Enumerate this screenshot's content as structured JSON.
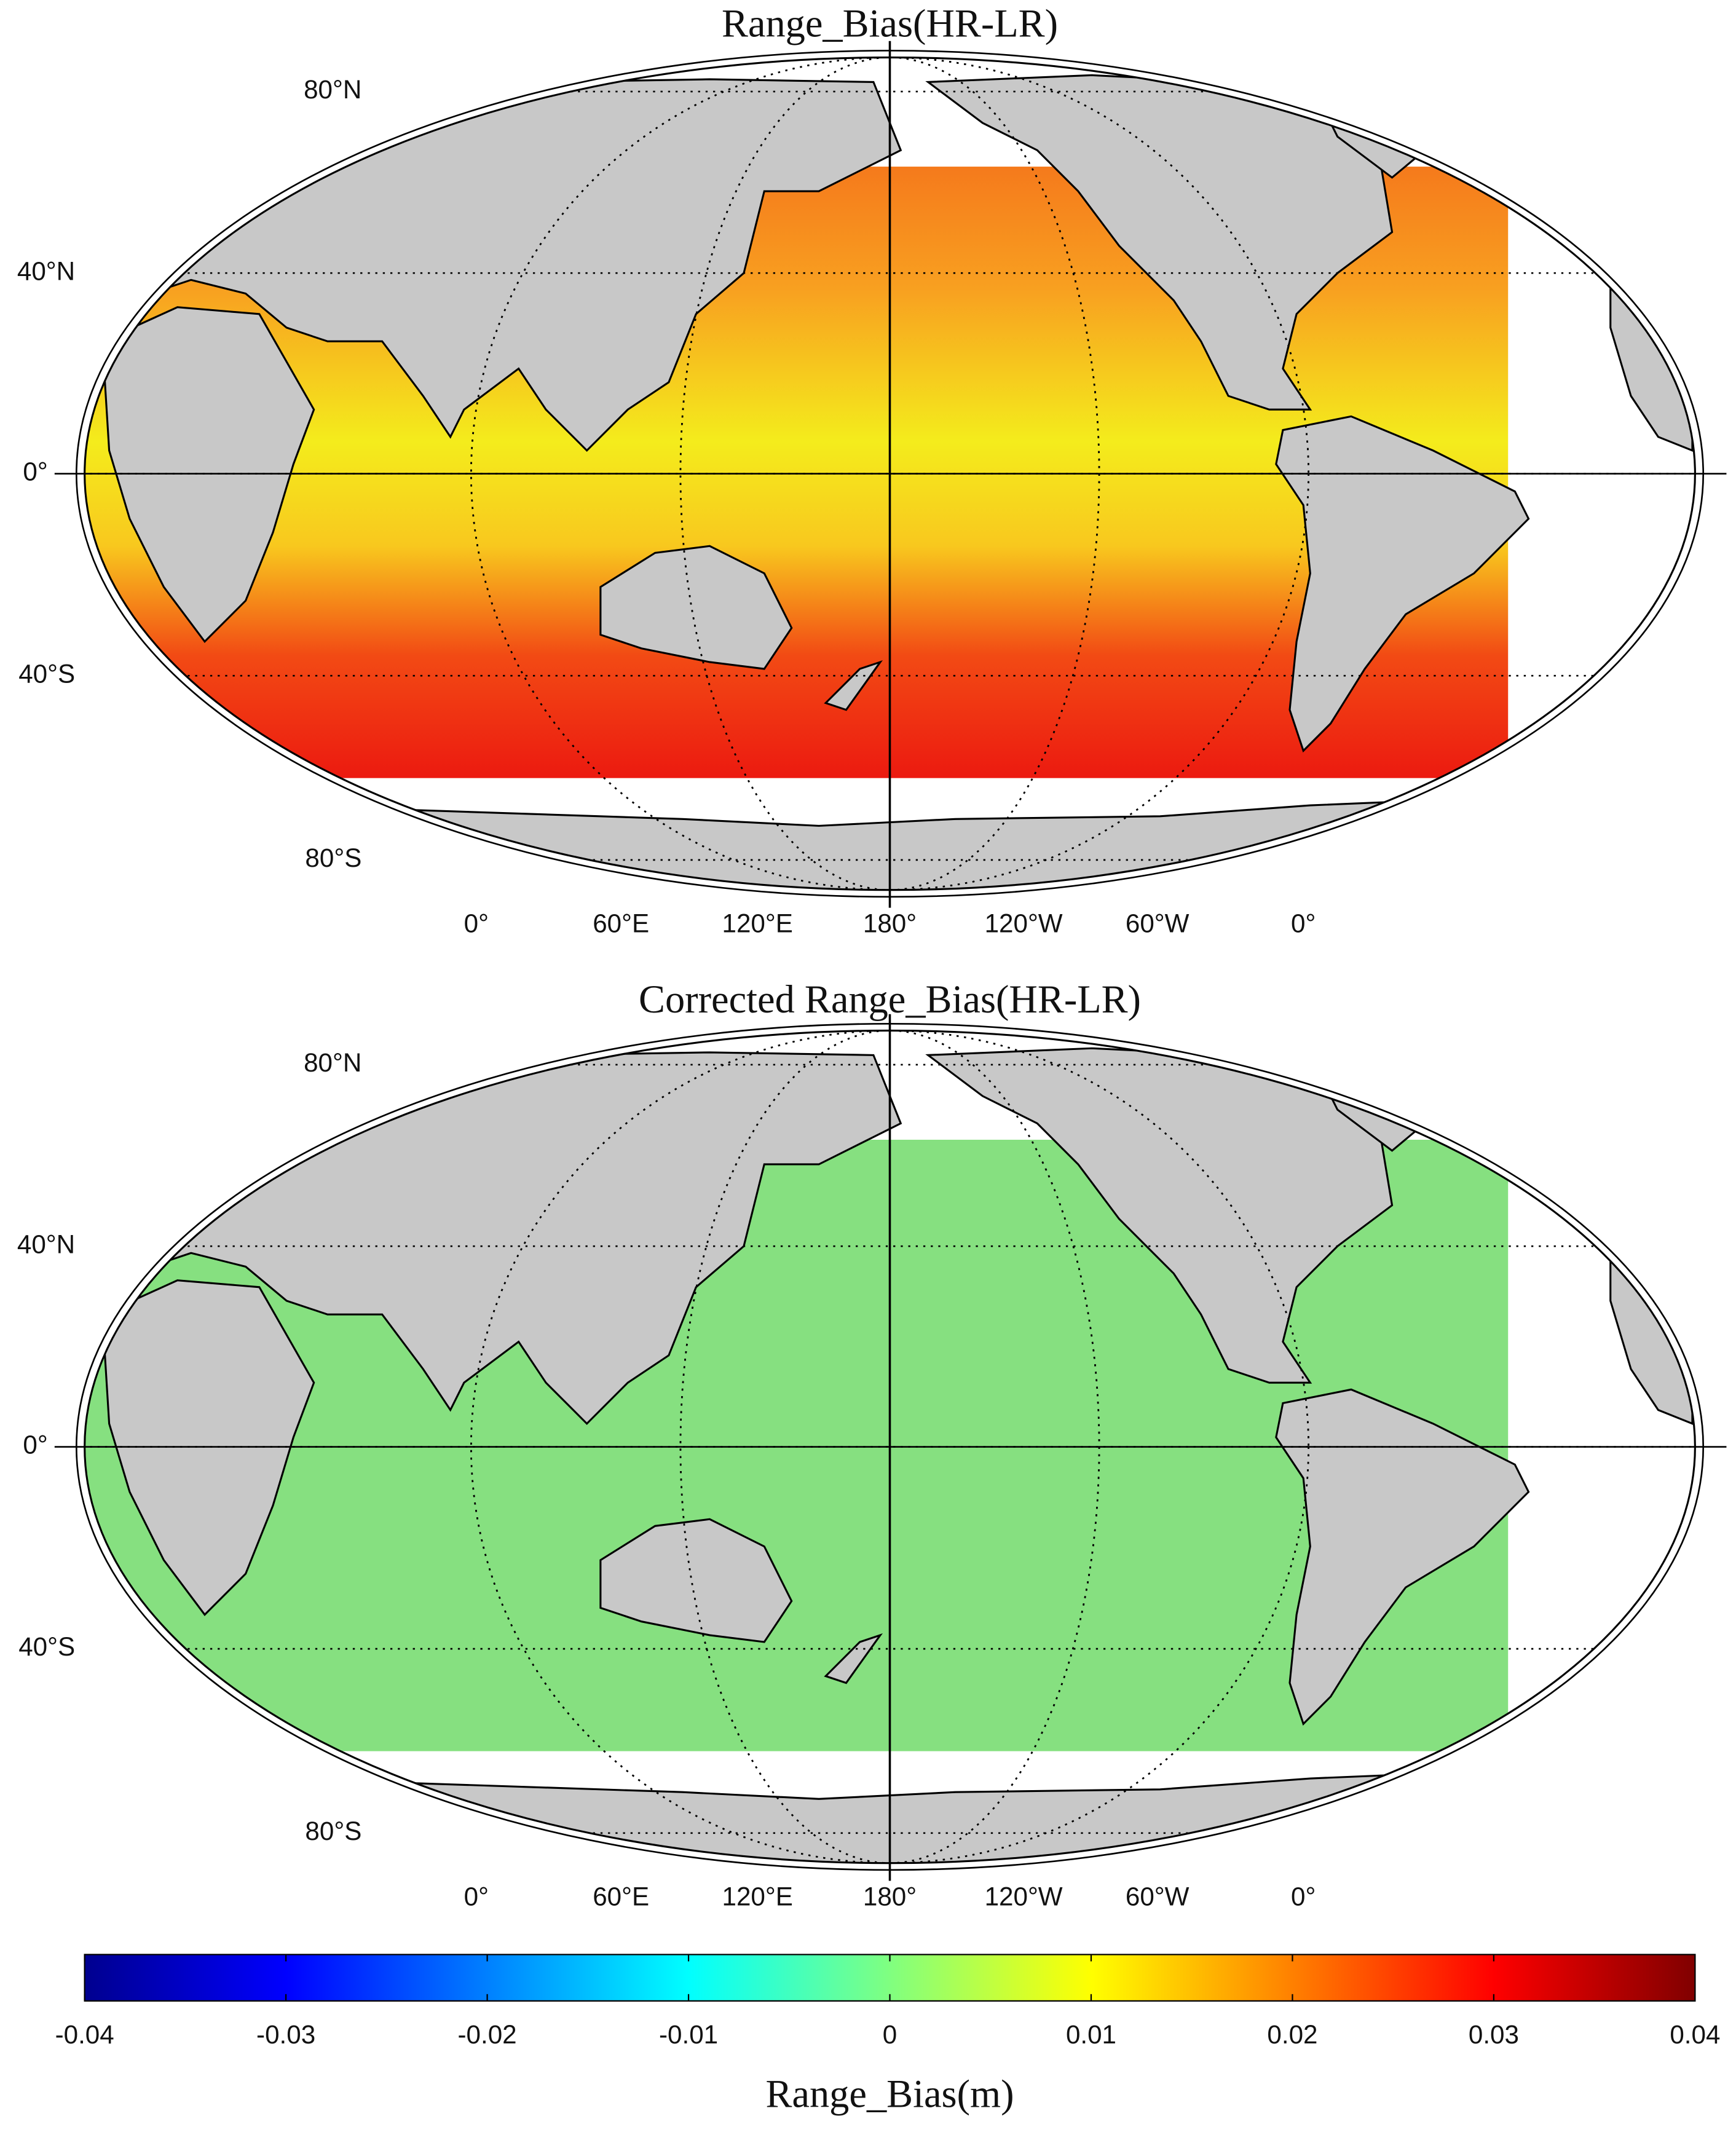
{
  "maps": [
    {
      "title": "Range_Bias(HR-LR)",
      "lat_labels": [
        "80°N",
        "40°N",
        "0°",
        "40°S",
        "80°S"
      ],
      "lon_labels": [
        "0°",
        "60°E",
        "120°E",
        "180°",
        "120°W",
        "60°W",
        "0°"
      ]
    },
    {
      "title": "Corrected Range_Bias(HR-LR)",
      "lat_labels": [
        "80°N",
        "40°N",
        "0°",
        "40°S",
        "80°S"
      ],
      "lon_labels": [
        "0°",
        "60°E",
        "120°E",
        "180°",
        "120°W",
        "60°W",
        "0°"
      ]
    }
  ],
  "colorbar": {
    "label": "Range_Bias(m)",
    "lim": [
      -0.04,
      0.04
    ],
    "ticks": [
      -0.04,
      -0.03,
      -0.02,
      -0.01,
      0,
      0.01,
      0.02,
      0.03,
      0.04
    ],
    "colormap": "jet"
  }
}
